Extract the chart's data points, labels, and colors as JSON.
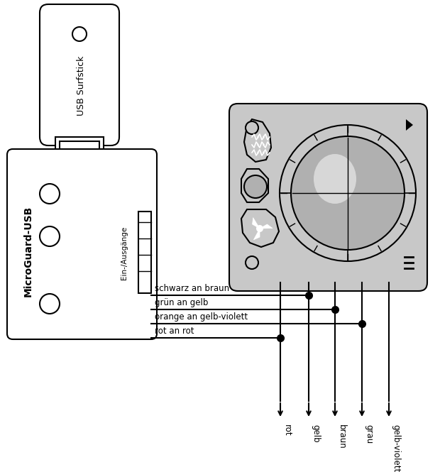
{
  "bg_color": "#ffffff",
  "lc": "#000000",
  "device_fill": "#c8c8c8",
  "device_fill2": "#b0b0b0",
  "white": "#ffffff",
  "labels": {
    "usb_stick": "USB Surfstick",
    "microguard": "MicroGuard-USB",
    "ein_ausgaenge": "Ein-/Ausgänge",
    "schwarz": "schwarz an braun",
    "gruen": "grün an gelb",
    "orange": "orange an gelb-violett",
    "rot_label": "rot an rot",
    "wire1": "rot",
    "wire2": "gelb",
    "wire3": "braun",
    "wire4": "grau",
    "wire5": "gelb-violett"
  }
}
